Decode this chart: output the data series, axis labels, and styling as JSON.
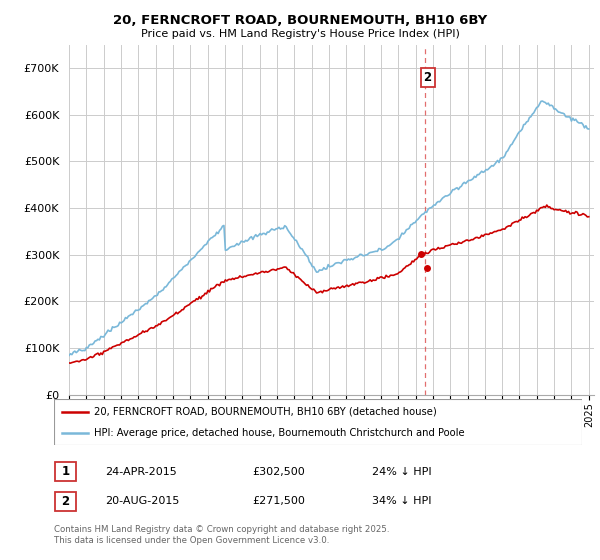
{
  "title_line1": "20, FERNCROFT ROAD, BOURNEMOUTH, BH10 6BY",
  "title_line2": "Price paid vs. HM Land Registry's House Price Index (HPI)",
  "ylim": [
    0,
    750000
  ],
  "yticks": [
    0,
    100000,
    200000,
    300000,
    400000,
    500000,
    600000,
    700000
  ],
  "ytick_labels": [
    "£0",
    "£100K",
    "£200K",
    "£300K",
    "£400K",
    "£500K",
    "£600K",
    "£700K"
  ],
  "hpi_color": "#7ab8d9",
  "price_color": "#cc0000",
  "marker_color": "#cc0000",
  "dashed_line_color": "#dd5555",
  "annotation2_label": "2",
  "annotation1_date": "24-APR-2015",
  "annotation1_price": "£302,500",
  "annotation1_hpi": "24% ↓ HPI",
  "annotation2_date": "20-AUG-2015",
  "annotation2_price": "£271,500",
  "annotation2_hpi": "34% ↓ HPI",
  "legend_line1": "20, FERNCROFT ROAD, BOURNEMOUTH, BH10 6BY (detached house)",
  "legend_line2": "HPI: Average price, detached house, Bournemouth Christchurch and Poole",
  "footer": "Contains HM Land Registry data © Crown copyright and database right 2025.\nThis data is licensed under the Open Government Licence v3.0.",
  "transaction1_x": 2015.3,
  "transaction1_y": 302500,
  "transaction2_x": 2015.65,
  "transaction2_y": 271500,
  "vline_x": 2015.55,
  "background_color": "#ffffff",
  "grid_color": "#cccccc",
  "xlim_left": 1995,
  "xlim_right": 2025.3
}
